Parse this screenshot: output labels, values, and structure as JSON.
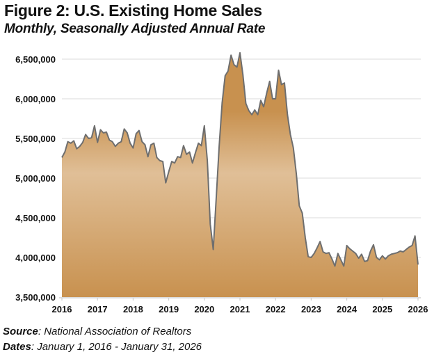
{
  "chart_data": {
    "type": "area",
    "title": "Figure 2: U.S. Existing Home Sales",
    "subtitle": "Monthly, Seasonally Adjusted Annual Rate",
    "xlabel": "",
    "ylabel": "",
    "start": "2016-01",
    "frequency": "monthly",
    "ylim": [
      3500000,
      6500000
    ],
    "xlim": [
      2016,
      2026
    ],
    "grid": true,
    "yticks": [
      "3,500,000",
      "4,000,000",
      "4,500,000",
      "5,000,000",
      "5,500,000",
      "6,000,000",
      "6,500,000"
    ],
    "xticks": [
      "2016",
      "2017",
      "2018",
      "2019",
      "2020",
      "2021",
      "2022",
      "2023",
      "2024",
      "2025",
      "2026"
    ],
    "fill_color_dark": "#c8914f",
    "fill_color_light": "#e0bf97",
    "line_color": "#6e6e6e",
    "values": [
      5260000,
      5330000,
      5460000,
      5440000,
      5470000,
      5370000,
      5400000,
      5450000,
      5550000,
      5500000,
      5510000,
      5660000,
      5450000,
      5610000,
      5570000,
      5580000,
      5480000,
      5460000,
      5400000,
      5440000,
      5460000,
      5620000,
      5570000,
      5440000,
      5380000,
      5560000,
      5600000,
      5460000,
      5420000,
      5270000,
      5420000,
      5440000,
      5260000,
      5220000,
      5210000,
      4940000,
      5080000,
      5210000,
      5190000,
      5270000,
      5260000,
      5410000,
      5300000,
      5330000,
      5190000,
      5320000,
      5440000,
      5410000,
      5660000,
      5220000,
      4420000,
      4100000,
      4750000,
      5400000,
      5950000,
      6290000,
      6350000,
      6550000,
      6430000,
      6400000,
      6580000,
      6300000,
      5940000,
      5850000,
      5800000,
      5860000,
      5800000,
      5980000,
      5900000,
      6070000,
      6220000,
      6000000,
      6000000,
      6360000,
      6180000,
      6200000,
      5800000,
      5550000,
      5380000,
      5050000,
      4650000,
      4560000,
      4250000,
      4010000,
      4000000,
      4050000,
      4120000,
      4200000,
      4070000,
      4050000,
      4060000,
      3980000,
      3890000,
      4050000,
      3970000,
      3890000,
      4150000,
      4110000,
      4080000,
      4050000,
      3990000,
      4040000,
      3950000,
      3960000,
      4080000,
      4160000,
      4000000,
      3970000,
      4020000,
      3980000,
      4020000,
      4040000,
      4050000,
      4060000,
      4080000,
      4070000,
      4100000,
      4130000,
      4150000,
      4270000,
      3910000
    ]
  },
  "footer": {
    "source_label": "Source",
    "source_text": ": National Association of Realtors",
    "dates_label": "Dates",
    "dates_text": ": January 1, 2016 - January 31, 2026"
  }
}
